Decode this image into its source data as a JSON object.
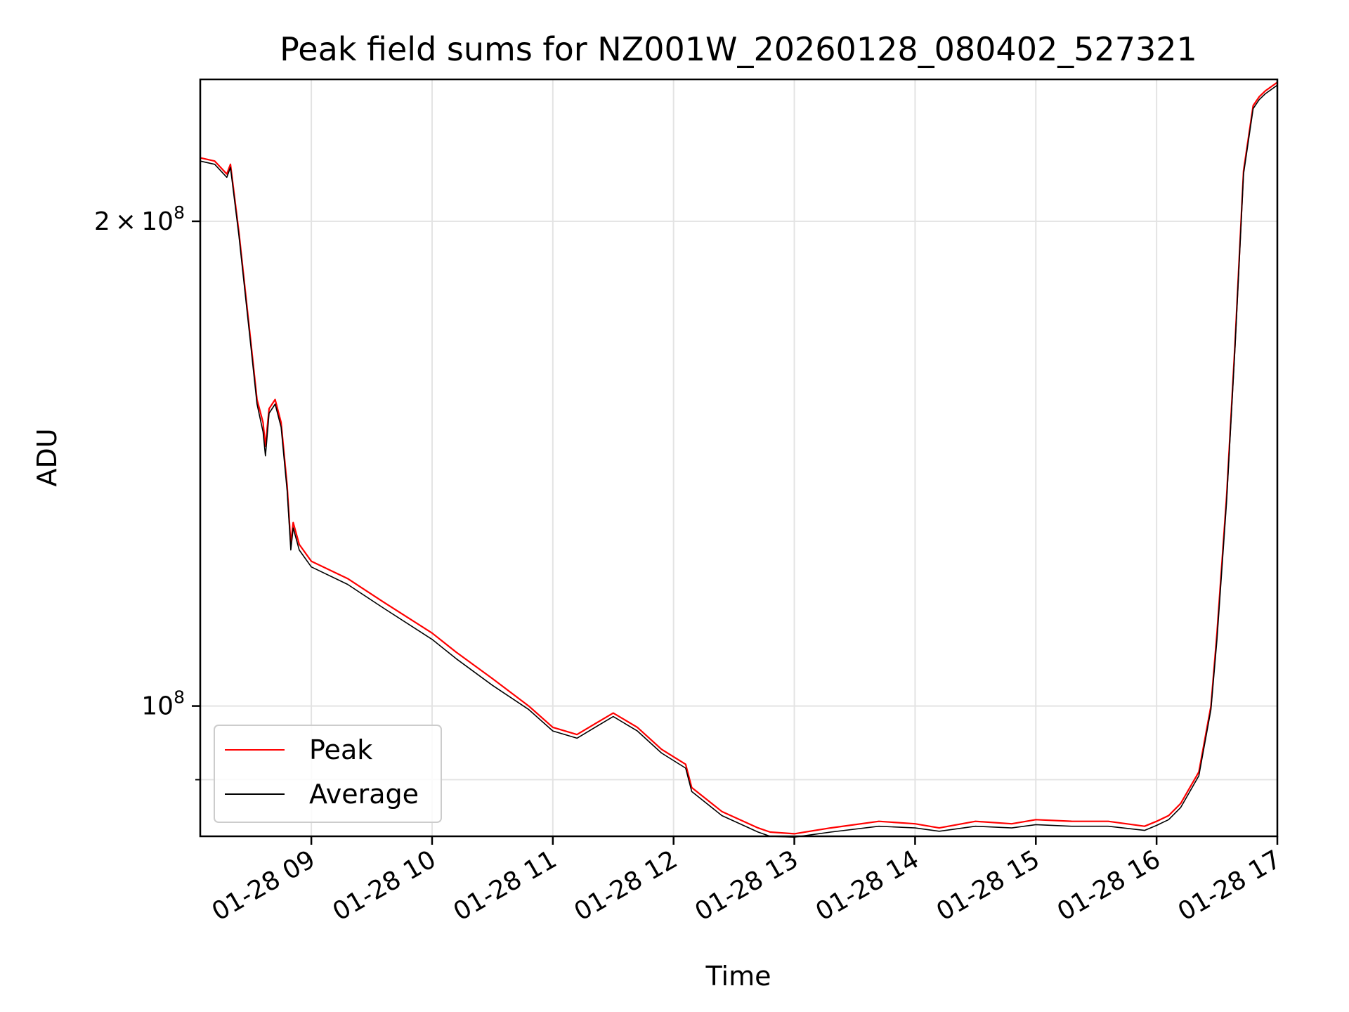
{
  "chart_data": {
    "type": "line",
    "title": "Peak field sums for NZ001W_20260128_080402_527321",
    "xlabel": "Time",
    "ylabel": "ADU",
    "x_unit": "hours since 01-28 00:00",
    "xlim": [
      8.08,
      17.0
    ],
    "ylim": [
      83000000,
      245000000
    ],
    "y_scale": "log",
    "grid": true,
    "legend_position": "lower-left",
    "x_ticks": [
      {
        "value": 9,
        "label": "01-28 09"
      },
      {
        "value": 10,
        "label": "01-28 10"
      },
      {
        "value": 11,
        "label": "01-28 11"
      },
      {
        "value": 12,
        "label": "01-28 12"
      },
      {
        "value": 13,
        "label": "01-28 13"
      },
      {
        "value": 14,
        "label": "01-28 14"
      },
      {
        "value": 15,
        "label": "01-28 15"
      },
      {
        "value": 16,
        "label": "01-28 16"
      },
      {
        "value": 17,
        "label": "01-28 17"
      }
    ],
    "y_ticks": [
      {
        "value": 200000000,
        "base": "2 × 10",
        "exp": "8"
      },
      {
        "value": 100000000,
        "base": "10",
        "exp": "8"
      }
    ],
    "y_minor_ticks": [
      90000000
    ],
    "x": [
      8.08,
      8.2,
      8.3,
      8.33,
      8.4,
      8.5,
      8.55,
      8.6,
      8.62,
      8.65,
      8.7,
      8.75,
      8.8,
      8.83,
      8.85,
      8.9,
      9.0,
      9.3,
      9.6,
      10.0,
      10.2,
      10.5,
      10.8,
      11.0,
      11.2,
      11.35,
      11.5,
      11.7,
      11.9,
      12.1,
      12.15,
      12.4,
      12.7,
      12.8,
      13.0,
      13.3,
      13.7,
      14.0,
      14.2,
      14.5,
      14.8,
      15.0,
      15.3,
      15.6,
      15.9,
      16.0,
      16.1,
      16.2,
      16.35,
      16.45,
      16.5,
      16.58,
      16.65,
      16.72,
      16.8,
      16.85,
      16.9,
      17.0
    ],
    "series": [
      {
        "name": "Peak",
        "color": "#ff0000",
        "values": [
          219000000,
          218000000,
          214000000,
          217000000,
          197000000,
          168000000,
          155000000,
          150000000,
          145000000,
          153000000,
          155000000,
          150000000,
          137000000,
          126000000,
          130000000,
          126000000,
          123000000,
          120000000,
          116000000,
          111000000,
          108000000,
          104000000,
          100000000,
          97000000,
          96000000,
          97500000,
          99000000,
          97000000,
          94000000,
          92000000,
          89000000,
          86000000,
          84000000,
          83500000,
          83300000,
          84000000,
          84800000,
          84500000,
          84000000,
          84800000,
          84500000,
          85000000,
          84800000,
          84800000,
          84200000,
          84800000,
          85500000,
          87000000,
          91000000,
          100000000,
          111000000,
          135000000,
          168000000,
          215000000,
          236000000,
          239000000,
          241000000,
          244000000
        ]
      },
      {
        "name": "Average",
        "color": "#000000",
        "values": [
          218000000,
          217000000,
          213000000,
          216000000,
          196000000,
          167000000,
          154000000,
          148000000,
          143000000,
          152000000,
          154000000,
          149000000,
          136000000,
          125000000,
          129000000,
          125000000,
          122000000,
          119000000,
          115000000,
          110000000,
          107000000,
          103000000,
          99500000,
          96500000,
          95500000,
          97000000,
          98500000,
          96500000,
          93500000,
          91500000,
          88500000,
          85500000,
          83500000,
          83000000,
          82900000,
          83500000,
          84200000,
          84000000,
          83600000,
          84200000,
          84000000,
          84400000,
          84200000,
          84200000,
          83700000,
          84300000,
          85000000,
          86500000,
          90500000,
          99500000,
          110000000,
          134000000,
          167000000,
          214000000,
          235000000,
          238000000,
          240000000,
          243000000
        ]
      }
    ]
  }
}
